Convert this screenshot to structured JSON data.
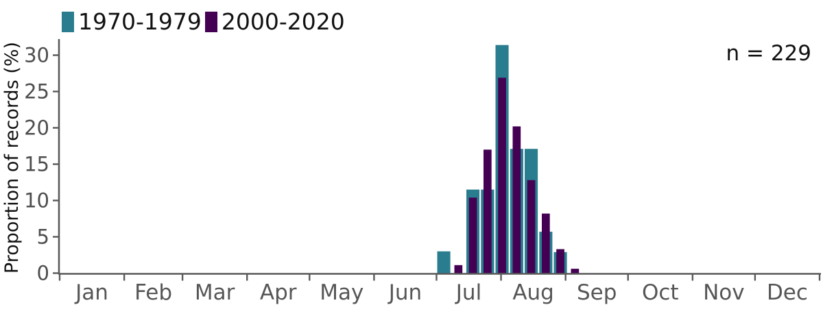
{
  "chart_data": {
    "type": "bar",
    "title": "",
    "xlabel": "",
    "ylabel": "Proportion of records (%)",
    "annotation": "n = 229",
    "grid": false,
    "legend_position": "top-left",
    "ylim": [
      0,
      32
    ],
    "yticks": [
      0,
      5,
      10,
      15,
      20,
      25,
      30
    ],
    "x_axis": {
      "unit": "day-of-year",
      "range_days": [
        0,
        365
      ],
      "tick_style": "month-boundaries",
      "month_labels": [
        "Jan",
        "Feb",
        "Mar",
        "Apr",
        "May",
        "Jun",
        "Jul",
        "Aug",
        "Sep",
        "Oct",
        "Nov",
        "Dec"
      ],
      "month_days": [
        31,
        28,
        31,
        30,
        31,
        30,
        31,
        31,
        30,
        31,
        30,
        31
      ]
    },
    "bins": {
      "width_days": 7,
      "start_day_of_year": 181,
      "labels": [
        "Jul 1-7",
        "Jul 8-14",
        "Jul 15-21",
        "Jul 22-28",
        "Jul 29-Aug 4",
        "Aug 5-11",
        "Aug 12-18",
        "Aug 19-25",
        "Aug 26-Sep 1",
        "Sep 2-8"
      ]
    },
    "series": [
      {
        "name": "1970-1979",
        "color": "#2a7d8e",
        "bar_width_fraction": 0.9,
        "values": [
          3.0,
          0,
          11.5,
          11.5,
          31.4,
          17.1,
          17.1,
          5.7,
          2.9,
          0
        ]
      },
      {
        "name": "2000-2020",
        "color": "#440154",
        "bar_width_fraction": 0.55,
        "values": [
          0,
          1.1,
          10.4,
          17.0,
          26.9,
          20.2,
          12.8,
          8.2,
          3.3,
          0.6
        ]
      }
    ]
  },
  "colors": {
    "background": "#ffffff",
    "axis": "#5a5a5a",
    "ytick_label": "#4d4d4d",
    "month_label": "#565656",
    "text": "#111111"
  }
}
